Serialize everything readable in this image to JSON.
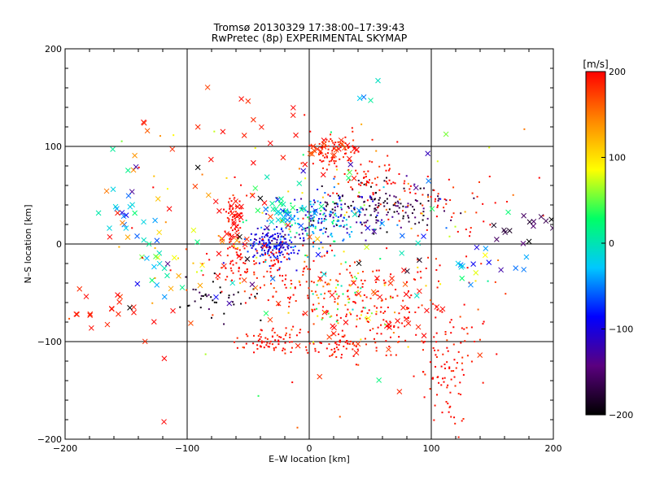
{
  "chart_data": {
    "type": "scatter",
    "title": "Tromsø 20130329 17:38:00–17:39:43",
    "subtitle": "RwPretec (8p) EXPERIMENTAL SKYMAP",
    "xlabel": "E–W location [km]",
    "ylabel": "N–S location [km]",
    "xlim": [
      -200,
      200
    ],
    "ylim": [
      -200,
      200
    ],
    "xticks": [
      -200,
      -100,
      0,
      100,
      200
    ],
    "yticks": [
      -200,
      -100,
      0,
      100,
      200
    ],
    "grid": "major gridlines at ±100 and 0",
    "markers": [
      "cross",
      "dot"
    ],
    "colorbar": {
      "label": "[m/s]",
      "range": [
        -200,
        200
      ],
      "ticks": [
        200,
        100,
        0,
        -100,
        -200
      ],
      "colormap": "rainbow",
      "stops": [
        "#000000",
        "#5a007f",
        "#0000ff",
        "#00c8ff",
        "#00ff66",
        "#ffff00",
        "#ff8800",
        "#ff0000"
      ]
    },
    "clusters": [
      {
        "x": -30,
        "y": 0,
        "sx": 12,
        "sy": 9,
        "velocity": -95,
        "spread": 25,
        "count": 170,
        "marker": "dot"
      },
      {
        "x": 5,
        "y": 20,
        "sx": 18,
        "sy": 14,
        "velocity": -20,
        "spread": 40,
        "count": 110,
        "marker": "dot"
      },
      {
        "x": 60,
        "y": 40,
        "sx": 28,
        "sy": 12,
        "velocity": -170,
        "spread": 25,
        "count": 150,
        "marker": "dot"
      },
      {
        "x": 15,
        "y": 30,
        "sx": 22,
        "sy": 12,
        "velocity": -110,
        "spread": 40,
        "count": 90,
        "marker": "dot"
      },
      {
        "x": 20,
        "y": 95,
        "sx": 12,
        "sy": 10,
        "velocity": 190,
        "spread": 10,
        "count": 80,
        "marker": "dot"
      },
      {
        "x": 15,
        "y": 95,
        "sx": 12,
        "sy": 10,
        "velocity": 185,
        "spread": 15,
        "count": 25,
        "marker": "cross"
      },
      {
        "x": -62,
        "y": 15,
        "sx": 4,
        "sy": 22,
        "velocity": 195,
        "spread": 10,
        "count": 80,
        "marker": "dot"
      },
      {
        "x": -60,
        "y": 10,
        "sx": 5,
        "sy": 20,
        "velocity": 195,
        "spread": 10,
        "count": 20,
        "marker": "cross"
      },
      {
        "x": 50,
        "y": 65,
        "sx": 15,
        "sy": 8,
        "velocity": 195,
        "spread": 10,
        "count": 50,
        "marker": "dot"
      },
      {
        "x": -40,
        "y": -20,
        "sx": 25,
        "sy": 10,
        "velocity": 195,
        "spread": 10,
        "count": 60,
        "marker": "dot"
      },
      {
        "x": 0,
        "y": -45,
        "sx": 35,
        "sy": 15,
        "velocity": 195,
        "spread": 15,
        "count": 80,
        "marker": "dot"
      },
      {
        "x": 60,
        "y": -65,
        "sx": 35,
        "sy": 25,
        "velocity": 195,
        "spread": 10,
        "count": 130,
        "marker": "dot"
      },
      {
        "x": 55,
        "y": -70,
        "sx": 30,
        "sy": 25,
        "velocity": 195,
        "spread": 10,
        "count": 40,
        "marker": "cross"
      },
      {
        "x": 30,
        "y": -60,
        "sx": 25,
        "sy": 15,
        "velocity": 110,
        "spread": 80,
        "count": 70,
        "marker": "dot"
      },
      {
        "x": 115,
        "y": -135,
        "sx": 12,
        "sy": 30,
        "velocity": 195,
        "spread": 10,
        "count": 90,
        "marker": "dot"
      },
      {
        "x": -30,
        "y": -100,
        "sx": 15,
        "sy": 6,
        "velocity": 195,
        "spread": 10,
        "count": 70,
        "marker": "dot"
      },
      {
        "x": 25,
        "y": -105,
        "sx": 12,
        "sy": 8,
        "velocity": 195,
        "spread": 10,
        "count": 45,
        "marker": "dot"
      },
      {
        "x": -75,
        "y": -55,
        "sx": 20,
        "sy": 12,
        "velocity": -185,
        "spread": 20,
        "count": 40,
        "marker": "dot"
      },
      {
        "x": 110,
        "y": 40,
        "sx": 30,
        "sy": 15,
        "velocity": 190,
        "spread": 15,
        "count": 50,
        "marker": "dot"
      },
      {
        "x": -150,
        "y": 35,
        "sx": 12,
        "sy": 12,
        "velocity": -40,
        "spread": 40,
        "count": 18,
        "marker": "cross"
      },
      {
        "x": -125,
        "y": -25,
        "sx": 10,
        "sy": 15,
        "velocity": 0,
        "spread": 60,
        "count": 18,
        "marker": "cross"
      },
      {
        "x": -165,
        "y": -70,
        "sx": 25,
        "sy": 15,
        "velocity": 195,
        "spread": 10,
        "count": 20,
        "marker": "cross"
      },
      {
        "x": 150,
        "y": -25,
        "sx": 15,
        "sy": 12,
        "velocity": -30,
        "spread": 50,
        "count": 14,
        "marker": "cross"
      },
      {
        "x": 175,
        "y": 20,
        "sx": 15,
        "sy": 10,
        "velocity": -175,
        "spread": 20,
        "count": 16,
        "marker": "cross"
      },
      {
        "x": -90,
        "y": 0,
        "sx": 40,
        "sy": 80,
        "velocity": 180,
        "spread": 30,
        "count": 45,
        "marker": "cross"
      },
      {
        "x": 20,
        "y": 0,
        "sx": 90,
        "sy": 70,
        "velocity": 150,
        "spread": 60,
        "count": 140,
        "marker": "dot"
      },
      {
        "x": 20,
        "y": 10,
        "sx": 80,
        "sy": 60,
        "velocity": -60,
        "spread": 100,
        "count": 60,
        "marker": "cross"
      },
      {
        "x": -20,
        "y": 30,
        "sx": 8,
        "sy": 8,
        "velocity": -20,
        "spread": 30,
        "count": 25,
        "marker": "cross"
      },
      {
        "x": 50,
        "y": 155,
        "sx": 15,
        "sy": 18,
        "velocity": -10,
        "spread": 30,
        "count": 4,
        "marker": "cross"
      },
      {
        "x": -30,
        "y": 120,
        "sx": 20,
        "sy": 15,
        "velocity": 195,
        "spread": 10,
        "count": 8,
        "marker": "cross"
      }
    ]
  }
}
